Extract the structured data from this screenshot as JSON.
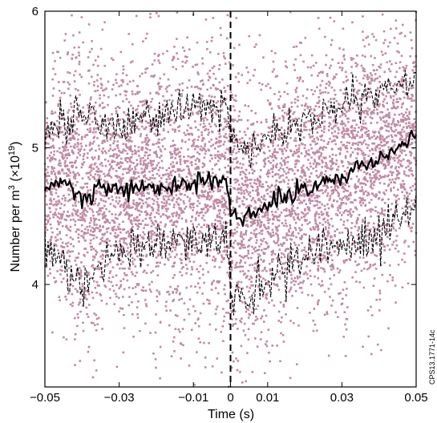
{
  "chart_data": {
    "type": "scatter",
    "title": "",
    "xlabel": "Time (s)",
    "ylabel_main": "Number per m",
    "ylabel_sup1": "3",
    "ylabel_unit": " (×10",
    "ylabel_sup2": "19",
    "ylabel_close": ")",
    "side_label": "CPS13.1771-14c",
    "xlim": [
      -0.05,
      0.05
    ],
    "ylim": [
      3.25,
      6.0
    ],
    "xticks": [
      -0.05,
      -0.03,
      -0.01,
      0,
      0.01,
      0.03,
      0.05
    ],
    "xtick_labels": [
      "−0.05",
      "−0.03",
      "−0.01",
      "0",
      "0.01",
      "0.03",
      "0.05"
    ],
    "yticks": [
      4,
      5,
      6
    ],
    "ytick_labels": [
      "4",
      "5",
      "6"
    ],
    "event_time": 0,
    "grid": false,
    "colors": {
      "scatter": "#c08aa6",
      "mean": "#000000",
      "envelope": "#000000",
      "event": "#000000"
    },
    "scatter_description_points": 6000,
    "series": [
      {
        "kind": "mean",
        "x": [
          -0.05,
          -0.045,
          -0.04,
          -0.035,
          -0.03,
          -0.025,
          -0.02,
          -0.015,
          -0.01,
          -0.005,
          -0.001,
          0.0,
          0.002,
          0.005,
          0.008,
          0.01,
          0.015,
          0.02,
          0.025,
          0.03,
          0.035,
          0.04,
          0.045,
          0.05
        ],
        "y": [
          4.7,
          4.75,
          4.62,
          4.68,
          4.7,
          4.72,
          4.7,
          4.73,
          4.75,
          4.76,
          4.75,
          4.58,
          4.48,
          4.5,
          4.55,
          4.6,
          4.66,
          4.72,
          4.75,
          4.8,
          4.86,
          4.92,
          5.0,
          5.1
        ]
      },
      {
        "kind": "upper",
        "x": [
          -0.05,
          -0.045,
          -0.04,
          -0.035,
          -0.03,
          -0.025,
          -0.02,
          -0.015,
          -0.01,
          -0.005,
          -0.001,
          0.0,
          0.002,
          0.005,
          0.008,
          0.01,
          0.015,
          0.02,
          0.025,
          0.03,
          0.035,
          0.04,
          0.045,
          0.05
        ],
        "y": [
          5.08,
          5.2,
          5.24,
          5.2,
          5.16,
          5.2,
          5.2,
          5.26,
          5.28,
          5.3,
          5.3,
          5.15,
          5.0,
          4.98,
          5.0,
          5.08,
          5.15,
          5.2,
          5.26,
          5.3,
          5.32,
          5.38,
          5.45,
          5.52
        ]
      },
      {
        "kind": "lower",
        "x": [
          -0.05,
          -0.045,
          -0.04,
          -0.035,
          -0.03,
          -0.025,
          -0.02,
          -0.015,
          -0.01,
          -0.005,
          -0.001,
          0.0,
          0.002,
          0.005,
          0.008,
          0.01,
          0.015,
          0.02,
          0.025,
          0.03,
          0.035,
          0.04,
          0.045,
          0.05
        ],
        "y": [
          4.3,
          4.15,
          4.0,
          4.2,
          4.25,
          4.26,
          4.3,
          4.3,
          4.33,
          4.32,
          4.3,
          4.0,
          3.92,
          3.9,
          4.0,
          4.08,
          4.1,
          4.18,
          4.22,
          4.28,
          4.33,
          4.38,
          4.45,
          4.6
        ]
      }
    ]
  }
}
